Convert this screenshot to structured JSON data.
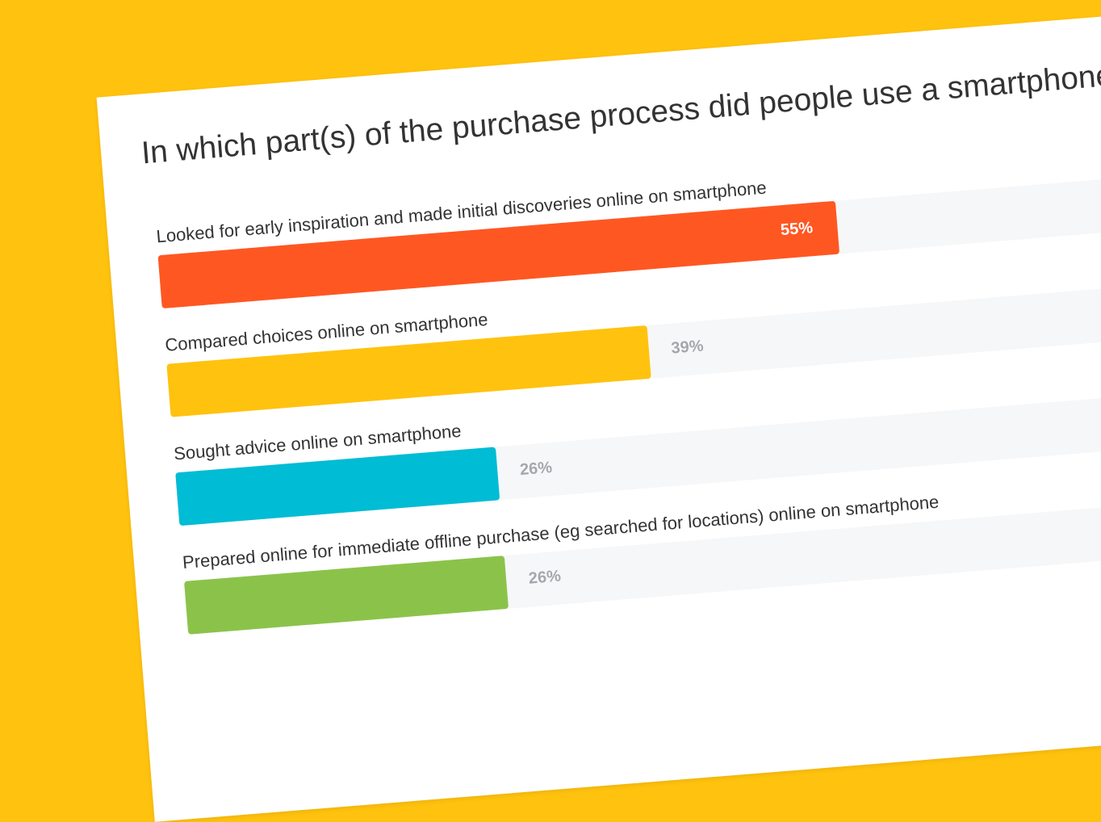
{
  "chart_data": {
    "type": "bar",
    "orientation": "horizontal",
    "title": "In which part(s) of the purchase process did people use a smartphone?",
    "xlim": [
      0,
      100
    ],
    "grid": false,
    "legend": "none",
    "bars": [
      {
        "label": "Looked for early inspiration and made initial discoveries online on smartphone",
        "value": 55,
        "value_label": "55%",
        "color": "#FF5722",
        "label_inside": true
      },
      {
        "label": "Compared choices online on smartphone",
        "value": 39,
        "value_label": "39%",
        "color": "#FFC20E",
        "label_inside": false
      },
      {
        "label": "Sought advice online on smartphone",
        "value": 26,
        "value_label": "26%",
        "color": "#00BCD4",
        "label_inside": false
      },
      {
        "label": "Prepared online for immediate offline purchase (eg searched for locations) online on smartphone",
        "value": 26,
        "value_label": "26%",
        "color": "#8BC34A",
        "label_inside": false
      }
    ]
  },
  "colors": {
    "background": "#FFC20E",
    "card": "#FFFFFF",
    "track": "#F6F7F9",
    "value_outside": "#A4A8AC",
    "text": "#333333"
  }
}
